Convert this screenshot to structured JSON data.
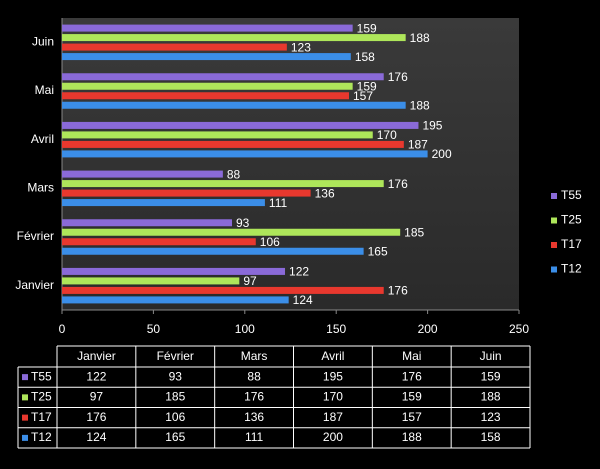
{
  "chart_data": {
    "type": "bar",
    "orientation": "horizontal",
    "categories": [
      "Janvier",
      "Février",
      "Mars",
      "Avril",
      "Mai",
      "Juin"
    ],
    "series": [
      {
        "name": "T55",
        "color": "#8a6ad8",
        "values": [
          122,
          93,
          88,
          195,
          176,
          159
        ]
      },
      {
        "name": "T25",
        "color": "#aee65a",
        "values": [
          97,
          185,
          176,
          170,
          159,
          188
        ]
      },
      {
        "name": "T17",
        "color": "#e8382e",
        "values": [
          176,
          106,
          136,
          187,
          157,
          123
        ]
      },
      {
        "name": "T12",
        "color": "#3b8ee8",
        "values": [
          124,
          165,
          111,
          200,
          188,
          158
        ]
      }
    ],
    "xlim": [
      0,
      250
    ],
    "xticks": [
      0,
      50,
      100,
      150,
      200,
      250
    ],
    "legend": "right",
    "data_table": true
  }
}
